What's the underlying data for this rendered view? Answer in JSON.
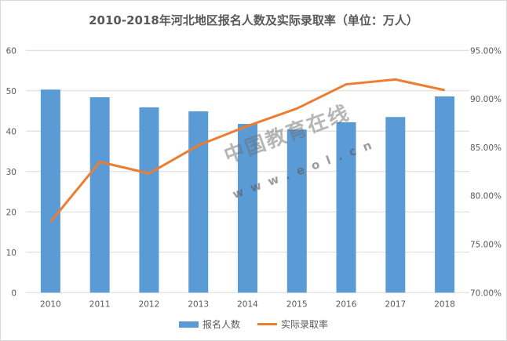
{
  "chart_data": {
    "type": "bar+line",
    "title": "2010-2018年河北地区报名人数及实际录取率（单位：万人）",
    "categories": [
      "2010",
      "2011",
      "2012",
      "2013",
      "2014",
      "2015",
      "2016",
      "2017",
      "2018"
    ],
    "series": [
      {
        "name": "报名人数",
        "type": "bar",
        "axis": "left",
        "color": "#5b9bd5",
        "values": [
          50.3,
          48.4,
          45.9,
          44.9,
          41.8,
          40.4,
          42.2,
          43.5,
          48.6
        ]
      },
      {
        "name": "实际录取率",
        "type": "line",
        "axis": "right",
        "color": "#ed7d31",
        "values": [
          77.3,
          83.5,
          82.3,
          85.2,
          87.2,
          89.0,
          91.5,
          92.0,
          90.9
        ]
      }
    ],
    "left_axis": {
      "ylim": [
        0,
        60
      ],
      "ticks": [
        "0",
        "10",
        "20",
        "30",
        "40",
        "50",
        "60"
      ]
    },
    "right_axis": {
      "ylim": [
        70,
        95
      ],
      "ticks": [
        "70.00%",
        "75.00%",
        "80.00%",
        "85.00%",
        "90.00%",
        "95.00%"
      ]
    },
    "grid": true,
    "legend": "bottom"
  },
  "watermark": {
    "text": "中国教育在线",
    "url": "www.eol.cn"
  }
}
